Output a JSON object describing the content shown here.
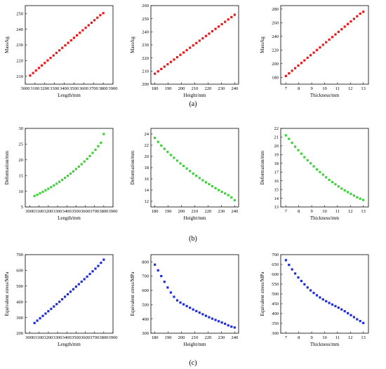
{
  "row_labels": [
    "(a)",
    "(b)",
    "(c)"
  ],
  "colors": {
    "red": "#e8191b",
    "green": "#3fd13a",
    "blue": "#1f2fd6"
  },
  "chart_data": [
    {
      "type": "scatter",
      "row": 0,
      "col": 0,
      "color": "red",
      "xlabel": "Length/mm",
      "ylabel": "Mass/kg",
      "xlim": [
        3000,
        3900
      ],
      "ylim": [
        205,
        255
      ],
      "xticks": [
        3000,
        3100,
        3200,
        3300,
        3400,
        3500,
        3600,
        3700,
        3800,
        3900
      ],
      "yticks": [
        210,
        220,
        230,
        240,
        250
      ],
      "x": [
        3050,
        3080,
        3110,
        3140,
        3170,
        3200,
        3230,
        3260,
        3290,
        3320,
        3350,
        3380,
        3410,
        3440,
        3470,
        3500,
        3530,
        3560,
        3590,
        3620,
        3650,
        3680,
        3710,
        3740,
        3770,
        3800
      ],
      "y": [
        210.5,
        212.1,
        213.7,
        215.3,
        216.9,
        218.5,
        220.1,
        221.7,
        223.3,
        224.9,
        226.5,
        228.1,
        229.7,
        231.3,
        232.9,
        234.5,
        236.1,
        237.7,
        239.3,
        240.9,
        242.5,
        244.1,
        245.7,
        247.3,
        248.9,
        250.2
      ]
    },
    {
      "type": "scatter",
      "row": 0,
      "col": 1,
      "color": "red",
      "xlabel": "Height/mm",
      "ylabel": "Mass/kg",
      "xlim": [
        177,
        243
      ],
      "ylim": [
        200,
        260
      ],
      "xticks": [
        180,
        190,
        200,
        210,
        220,
        230,
        240
      ],
      "yticks": [
        200,
        210,
        220,
        230,
        240,
        250,
        260
      ],
      "x": [
        180,
        182.4,
        184.8,
        187.2,
        189.6,
        192,
        194.4,
        196.8,
        199.2,
        201.6,
        204,
        206.4,
        208.8,
        211.2,
        213.6,
        216,
        218.4,
        220.8,
        223.2,
        225.6,
        228,
        230.4,
        232.8,
        235.2,
        237.6,
        240
      ],
      "y": [
        208,
        209.8,
        211.6,
        213.4,
        215.2,
        217,
        218.8,
        220.6,
        222.4,
        224.2,
        226,
        227.8,
        229.6,
        231.4,
        233.2,
        235,
        236.8,
        238.6,
        240.4,
        242.2,
        244,
        245.8,
        247.6,
        249.4,
        251.2,
        253
      ]
    },
    {
      "type": "scatter",
      "row": 0,
      "col": 2,
      "color": "red",
      "xlabel": "Thickness/mm",
      "ylabel": "Mass/kg",
      "xlim": [
        6.6,
        13.4
      ],
      "ylim": [
        170,
        285
      ],
      "xticks": [
        7,
        8,
        9,
        10,
        11,
        12,
        13
      ],
      "yticks": [
        180,
        200,
        220,
        240,
        260,
        280
      ],
      "x": [
        7,
        7.24,
        7.48,
        7.72,
        7.96,
        8.2,
        8.44,
        8.68,
        8.92,
        9.16,
        9.4,
        9.64,
        9.88,
        10.12,
        10.36,
        10.6,
        10.84,
        11.08,
        11.32,
        11.56,
        11.8,
        12.04,
        12.28,
        12.52,
        12.76,
        13
      ],
      "y": [
        182,
        185.8,
        189.6,
        193.4,
        197.2,
        201,
        204.8,
        208.6,
        212.4,
        216.2,
        220,
        223.8,
        227.6,
        231.4,
        235.2,
        239,
        242.8,
        246.6,
        250.4,
        254.2,
        258,
        261.8,
        265.6,
        269.4,
        273.2,
        276
      ]
    },
    {
      "type": "scatter",
      "row": 1,
      "col": 0,
      "color": "green",
      "xlabel": "Length/mm",
      "ylabel": "Deformation/mm",
      "xlim": [
        2950,
        3900
      ],
      "ylim": [
        5,
        30
      ],
      "xticks": [
        3000,
        3100,
        3200,
        3300,
        3400,
        3500,
        3600,
        3700,
        3800,
        3900
      ],
      "yticks": [
        5,
        10,
        15,
        20,
        25,
        30
      ],
      "x": [
        3050,
        3080,
        3110,
        3140,
        3170,
        3200,
        3230,
        3260,
        3290,
        3320,
        3350,
        3380,
        3410,
        3440,
        3470,
        3500,
        3530,
        3560,
        3590,
        3620,
        3650,
        3680,
        3710,
        3740,
        3770,
        3800
      ],
      "y": [
        8.5,
        8.9,
        9.35,
        9.8,
        10.3,
        10.8,
        11.3,
        11.85,
        12.4,
        13.0,
        13.6,
        14.25,
        14.9,
        15.6,
        16.3,
        17.05,
        17.8,
        18.6,
        19.45,
        20.3,
        21.2,
        22.2,
        23.2,
        24.3,
        25.4,
        28.2
      ]
    },
    {
      "type": "scatter",
      "row": 1,
      "col": 1,
      "color": "green",
      "xlabel": "Height/mm",
      "ylabel": "Deformation/mm",
      "xlim": [
        177,
        243
      ],
      "ylim": [
        11,
        25
      ],
      "xticks": [
        180,
        190,
        200,
        210,
        220,
        230,
        240
      ],
      "yticks": [
        12,
        14,
        16,
        18,
        20,
        22,
        24
      ],
      "x": [
        180,
        182.4,
        184.8,
        187.2,
        189.6,
        192,
        194.4,
        196.8,
        199.2,
        201.6,
        204,
        206.4,
        208.8,
        211.2,
        213.6,
        216,
        218.4,
        220.8,
        223.2,
        225.6,
        228,
        230.4,
        232.8,
        235.2,
        237.6,
        240
      ],
      "y": [
        23.3,
        22.6,
        21.95,
        21.35,
        20.8,
        20.25,
        19.75,
        19.25,
        18.75,
        18.3,
        17.85,
        17.4,
        16.95,
        16.55,
        16.15,
        15.75,
        15.4,
        15.05,
        14.7,
        14.35,
        14.0,
        13.7,
        13.4,
        13.1,
        12.7,
        12.2
      ]
    },
    {
      "type": "scatter",
      "row": 1,
      "col": 2,
      "color": "green",
      "xlabel": "Thickness/mm",
      "ylabel": "Deformation/mm",
      "xlim": [
        6.6,
        13.4
      ],
      "ylim": [
        13,
        22
      ],
      "xticks": [
        7,
        8,
        9,
        10,
        11,
        12,
        13
      ],
      "yticks": [
        13,
        14,
        15,
        16,
        17,
        18,
        19,
        20,
        21,
        22
      ],
      "x": [
        7,
        7.24,
        7.48,
        7.72,
        7.96,
        8.2,
        8.44,
        8.68,
        8.92,
        9.16,
        9.4,
        9.64,
        9.88,
        10.12,
        10.36,
        10.6,
        10.84,
        11.08,
        11.32,
        11.56,
        11.8,
        12.04,
        12.28,
        12.52,
        12.76,
        13
      ],
      "y": [
        21.2,
        20.8,
        20.35,
        19.9,
        19.5,
        19.1,
        18.7,
        18.35,
        18.0,
        17.65,
        17.3,
        17.0,
        16.7,
        16.4,
        16.1,
        15.85,
        15.6,
        15.35,
        15.1,
        14.9,
        14.7,
        14.5,
        14.3,
        14.1,
        13.95,
        13.8
      ]
    },
    {
      "type": "scatter",
      "row": 2,
      "col": 0,
      "color": "blue",
      "xlabel": "Length/mm",
      "ylabel": "Equivalent stress/MPa",
      "xlim": [
        2950,
        3900
      ],
      "ylim": [
        200,
        700
      ],
      "xticks": [
        3000,
        3100,
        3200,
        3300,
        3400,
        3500,
        3600,
        3700,
        3800,
        3900
      ],
      "yticks": [
        200,
        300,
        400,
        500,
        600,
        700
      ],
      "x": [
        3050,
        3080,
        3110,
        3140,
        3170,
        3200,
        3230,
        3260,
        3290,
        3320,
        3350,
        3380,
        3410,
        3440,
        3470,
        3500,
        3530,
        3560,
        3590,
        3620,
        3650,
        3680,
        3710,
        3740,
        3770,
        3800
      ],
      "y": [
        265,
        280,
        295,
        310,
        325,
        340,
        355,
        370,
        385,
        400,
        416,
        432,
        448,
        464,
        480,
        496,
        512,
        528,
        544,
        560,
        577,
        594,
        611,
        628,
        648,
        668
      ]
    },
    {
      "type": "scatter",
      "row": 2,
      "col": 1,
      "color": "blue",
      "xlabel": "Height/mm",
      "ylabel": "Equivalent stress/MPa",
      "xlim": [
        177,
        243
      ],
      "ylim": [
        300,
        850
      ],
      "xticks": [
        180,
        190,
        200,
        210,
        220,
        230,
        240
      ],
      "yticks": [
        300,
        400,
        500,
        600,
        700,
        800
      ],
      "x": [
        180,
        182.4,
        184.8,
        187.2,
        189.6,
        192,
        194.4,
        196.8,
        199.2,
        201.6,
        204,
        206.4,
        208.8,
        211.2,
        213.6,
        216,
        218.4,
        220.8,
        223.2,
        225.6,
        228,
        230.4,
        232.8,
        235.2,
        237.6,
        240
      ],
      "y": [
        780,
        740,
        700,
        660,
        620,
        585,
        555,
        530,
        515,
        502,
        490,
        478,
        466,
        455,
        444,
        433,
        422,
        412,
        402,
        393,
        384,
        375,
        366,
        355,
        346,
        340
      ]
    },
    {
      "type": "scatter",
      "row": 2,
      "col": 2,
      "color": "blue",
      "xlabel": "Thickness/mm",
      "ylabel": "Equivalent stress/MPa",
      "xlim": [
        6.6,
        13.4
      ],
      "ylim": [
        300,
        700
      ],
      "xticks": [
        7,
        8,
        9,
        10,
        11,
        12,
        13
      ],
      "yticks": [
        300,
        350,
        400,
        450,
        500,
        550,
        600,
        650,
        700
      ],
      "x": [
        7,
        7.24,
        7.48,
        7.72,
        7.96,
        8.2,
        8.44,
        8.68,
        8.92,
        9.16,
        9.4,
        9.64,
        9.88,
        10.12,
        10.36,
        10.6,
        10.84,
        11.08,
        11.32,
        11.56,
        11.8,
        12.04,
        12.28,
        12.52,
        12.76,
        13
      ],
      "y": [
        672,
        648,
        625,
        604,
        584,
        566,
        549,
        533,
        518,
        505,
        493,
        482,
        472,
        463,
        454,
        446,
        438,
        430,
        421,
        412,
        402,
        392,
        382,
        371,
        362,
        352
      ]
    }
  ]
}
